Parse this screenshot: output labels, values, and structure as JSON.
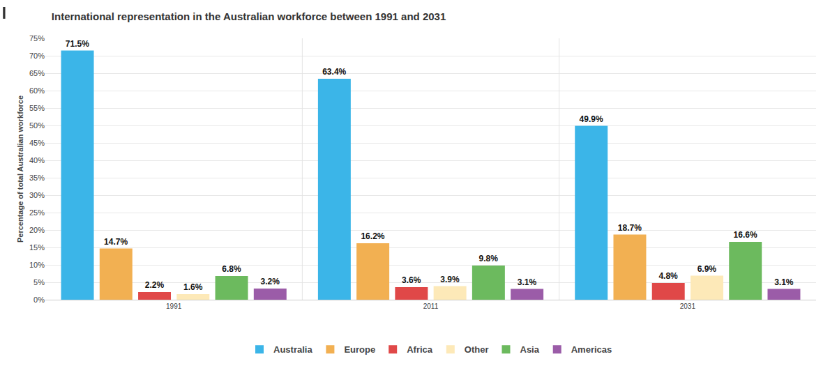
{
  "chart_data": {
    "type": "bar",
    "title": "International representation in the Australian workforce between 1991 and 2031",
    "y_label": "Percentage of total Australian workforce",
    "categories": [
      "1991",
      "2011",
      "2031"
    ],
    "series": [
      {
        "name": "Australia",
        "color": "#3bb5e8",
        "values": [
          71.5,
          63.4,
          49.9
        ],
        "value_labels": [
          "71.5%",
          "63.4%",
          "49.9%"
        ]
      },
      {
        "name": "Europe",
        "color": "#f2b052",
        "values": [
          14.7,
          16.2,
          18.7
        ],
        "value_labels": [
          "14.7%",
          "16.2%",
          "18.7%"
        ]
      },
      {
        "name": "Africa",
        "color": "#e04848",
        "values": [
          2.2,
          3.6,
          4.8
        ],
        "value_labels": [
          "2.2%",
          "3.6%",
          "4.8%"
        ]
      },
      {
        "name": "Other",
        "color": "#fde9b8",
        "values": [
          1.6,
          3.9,
          6.9
        ],
        "value_labels": [
          "1.6%",
          "3.9%",
          "6.9%"
        ]
      },
      {
        "name": "Asia",
        "color": "#6cba5e",
        "values": [
          6.8,
          9.8,
          16.6
        ],
        "value_labels": [
          "6.8%",
          "9.8%",
          "16.6%"
        ]
      },
      {
        "name": "Americas",
        "color": "#9b5ca8",
        "values": [
          3.2,
          3.1,
          3.1
        ],
        "value_labels": [
          "3.2%",
          "3.1%",
          "3.1%"
        ]
      }
    ],
    "ylim": [
      0,
      75
    ],
    "yticks": [
      {
        "value": 0,
        "label": "0%"
      },
      {
        "value": 5,
        "label": "5%"
      },
      {
        "value": 10,
        "label": "10%"
      },
      {
        "value": 15,
        "label": "15%"
      },
      {
        "value": 20,
        "label": "20%"
      },
      {
        "value": 25,
        "label": "25%"
      },
      {
        "value": 30,
        "label": "30%"
      },
      {
        "value": 35,
        "label": "35%"
      },
      {
        "value": 40,
        "label": "40%"
      },
      {
        "value": 45,
        "label": "45%"
      },
      {
        "value": 50,
        "label": "50%"
      },
      {
        "value": 55,
        "label": "55%"
      },
      {
        "value": 60,
        "label": "60%"
      },
      {
        "value": 65,
        "label": "65%"
      },
      {
        "value": 70,
        "label": "70%"
      },
      {
        "value": 75,
        "label": "75%"
      }
    ],
    "grid": true,
    "legend": "bottom",
    "data_labels": true
  }
}
